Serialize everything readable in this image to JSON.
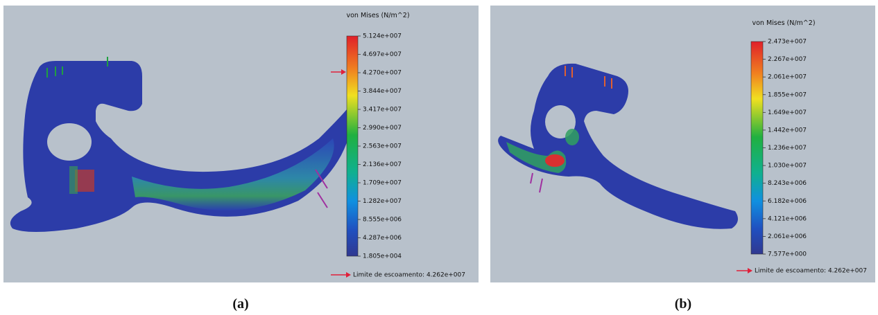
{
  "panels": [
    {
      "legend_title": "von Mises (N/m^2)",
      "ticks": [
        "5.124e+007",
        "4.697e+007",
        "4.270e+007",
        "3.844e+007",
        "3.417e+007",
        "2.990e+007",
        "2.563e+007",
        "2.136e+007",
        "1.709e+007",
        "1.282e+007",
        "8.555e+006",
        "4.287e+006",
        "1.805e+004"
      ],
      "yield_label": "Limite de escoamento: 4.262e+007",
      "caption": "(a)"
    },
    {
      "legend_title": "von Mises (N/m^2)",
      "ticks": [
        "2.473e+007",
        "2.267e+007",
        "2.061e+007",
        "1.855e+007",
        "1.649e+007",
        "1.442e+007",
        "1.236e+007",
        "1.030e+007",
        "8.243e+006",
        "6.182e+006",
        "4.121e+006",
        "2.061e+006",
        "7.577e+000"
      ],
      "yield_label": "Limite de escoamento: 4.262e+007",
      "caption": "(b)"
    }
  ]
}
